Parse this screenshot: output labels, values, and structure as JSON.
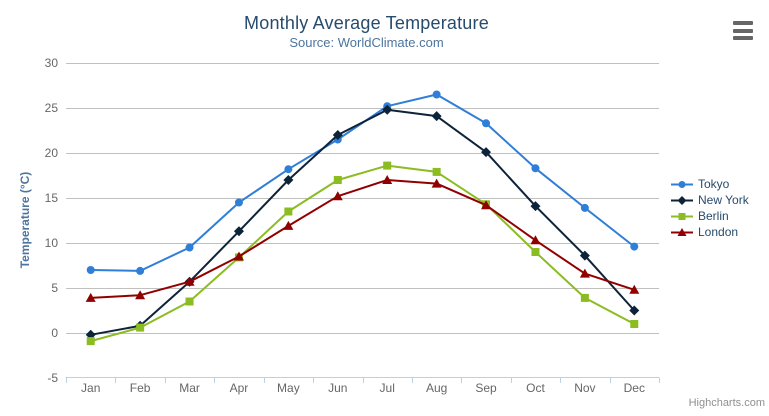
{
  "chart_data": {
    "type": "line",
    "title": "Monthly Average Temperature",
    "subtitle": "Source: WorldClimate.com",
    "ylabel": "Temperature (°C)",
    "xlabel": "",
    "categories": [
      "Jan",
      "Feb",
      "Mar",
      "Apr",
      "May",
      "Jun",
      "Jul",
      "Aug",
      "Sep",
      "Oct",
      "Nov",
      "Dec"
    ],
    "ylim": [
      -5,
      30
    ],
    "ytick_interval": 5,
    "grid": true,
    "legend_position": "right",
    "colors": {
      "grid_line": "#C0C0C0",
      "axis_line": "#C0D0E0",
      "tick_label": "#666666",
      "title_text": "#274b6d",
      "subtitle_text": "#4d759e"
    },
    "series": [
      {
        "name": "Tokyo",
        "color": "#2f7ed8",
        "marker": "circle",
        "values": [
          7.0,
          6.9,
          9.5,
          14.5,
          18.2,
          21.5,
          25.2,
          26.5,
          23.3,
          18.3,
          13.9,
          9.6
        ]
      },
      {
        "name": "New York",
        "color": "#0d233a",
        "marker": "diamond",
        "values": [
          -0.2,
          0.8,
          5.7,
          11.3,
          17.0,
          22.0,
          24.8,
          24.1,
          20.1,
          14.1,
          8.6,
          2.5
        ]
      },
      {
        "name": "Berlin",
        "color": "#8bbc21",
        "marker": "square",
        "values": [
          -0.9,
          0.6,
          3.5,
          8.4,
          13.5,
          17.0,
          18.6,
          17.9,
          14.3,
          9.0,
          3.9,
          1.0
        ]
      },
      {
        "name": "London",
        "color": "#910000",
        "marker": "triangle",
        "values": [
          3.9,
          4.2,
          5.7,
          8.5,
          11.9,
          15.2,
          17.0,
          16.6,
          14.2,
          10.3,
          6.6,
          4.8
        ]
      }
    ]
  },
  "credits": {
    "label": "Highcharts.com"
  }
}
